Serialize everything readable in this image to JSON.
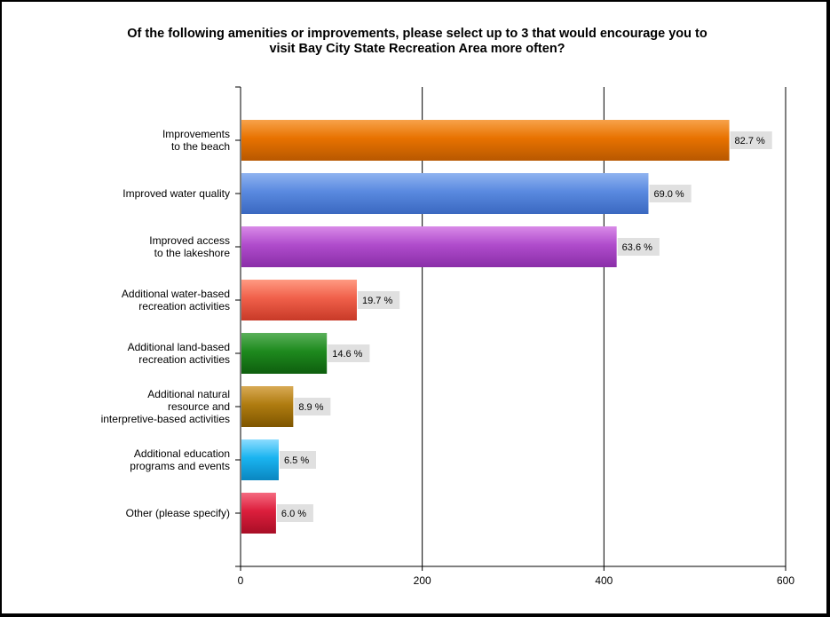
{
  "chart_data": {
    "type": "bar",
    "orientation": "horizontal",
    "title_lines": [
      "Of the following amenities or improvements, please select up to 3 that would encourage you to",
      "visit Bay City State Recreation Area more often?"
    ],
    "categories": [
      [
        "Improvements",
        "to the beach"
      ],
      [
        "Improved water quality"
      ],
      [
        "Improved access",
        "to the lakeshore"
      ],
      [
        "Additional water-based",
        "recreation activities"
      ],
      [
        "Additional land-based",
        "recreation activities"
      ],
      [
        "Additional natural",
        "resource and",
        "interpretive-based activities"
      ],
      [
        "Additional education",
        "programs and events"
      ],
      [
        "Other (please specify)"
      ]
    ],
    "values": [
      538,
      449,
      414,
      128,
      95,
      58,
      42,
      39
    ],
    "value_labels": [
      "82.7 %",
      "69.0 %",
      "63.6 %",
      "19.7 %",
      "14.6 %",
      "8.9 %",
      "6.5 %",
      "6.0 %"
    ],
    "colors": [
      [
        "#f7a24a",
        "#e87200",
        "#b85800"
      ],
      [
        "#8fb3f0",
        "#5a8ae0",
        "#3a68c0"
      ],
      [
        "#d98ae8",
        "#b04ccc",
        "#8a2ea8"
      ],
      [
        "#ff9a82",
        "#f0604a",
        "#c83a28"
      ],
      [
        "#5ab05a",
        "#1e8a1e",
        "#0e5e0e"
      ],
      [
        "#d8aa55",
        "#b07c10",
        "#7e5600"
      ],
      [
        "#8cdcff",
        "#1ab4f0",
        "#0a86c0"
      ],
      [
        "#f56a80",
        "#dc1e3c",
        "#a80e26"
      ]
    ],
    "xlim": [
      0,
      600
    ],
    "xticks": [
      "0",
      "200",
      "400",
      "600"
    ],
    "grid": "vertical",
    "legend": "none"
  }
}
